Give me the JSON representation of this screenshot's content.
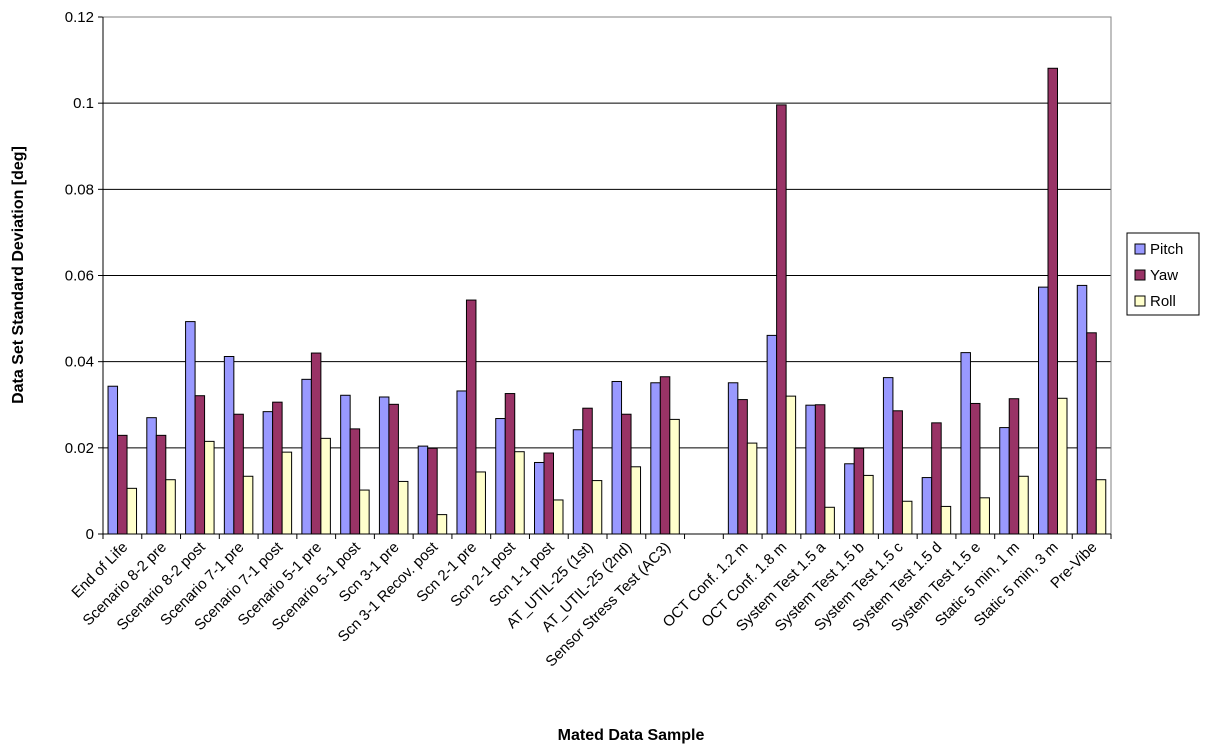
{
  "chart_data": {
    "type": "bar",
    "title": "",
    "xlabel": "Mated Data Sample",
    "ylabel": "Data Set Standard Deviation [deg]",
    "ylim": [
      0,
      0.12
    ],
    "yticks": [
      "0",
      "0.02",
      "0.04",
      "0.06",
      "0.08",
      "0.1",
      "0.12"
    ],
    "grid": true,
    "legend_position": "right",
    "categories": [
      "End of Life",
      "Scenario 8-2 pre",
      "Scenario 8-2 post",
      "Scenario 7-1 pre",
      "Scenario 7-1 post",
      "Scenario 5-1 pre",
      "Scenario 5-1 post",
      "Scn 3-1 pre",
      "Scn 3-1 Recov. post",
      "Scn 2-1 pre",
      "Scn 2-1 post",
      "Scn 1-1 post",
      "AT_UTIL-25 (1st)",
      "AT_UTIL-25 (2nd)",
      "Sensor Stress Test (AC3)",
      "",
      "OCT Conf. 1.2 m",
      "OCT Conf. 1.8 m",
      "System Test 1.5 a",
      "System Test 1.5 b",
      "System Test 1.5 c",
      "System Test 1.5 d",
      "System Test 1.5 e",
      "Static 5 min, 1 m",
      "Static 5 min, 3 m",
      "Pre-Vibe"
    ],
    "series": [
      {
        "name": "Pitch",
        "color": "#9999ff",
        "values": [
          0.0343,
          0.027,
          0.0493,
          0.0412,
          0.0284,
          0.0359,
          0.0322,
          0.0318,
          0.0204,
          0.0332,
          0.0268,
          0.0166,
          0.0242,
          0.0354,
          0.0351,
          null,
          0.0351,
          0.0461,
          0.0299,
          0.0163,
          0.0363,
          0.0131,
          0.0421,
          0.0247,
          0.0573,
          0.0577
        ]
      },
      {
        "name": "Yaw",
        "color": "#993366",
        "values": [
          0.0229,
          0.0229,
          0.0321,
          0.0278,
          0.0306,
          0.042,
          0.0244,
          0.0301,
          0.0199,
          0.0543,
          0.0326,
          0.0188,
          0.0292,
          0.0278,
          0.0365,
          null,
          0.0312,
          0.0996,
          0.03,
          0.0199,
          0.0286,
          0.0258,
          0.0303,
          0.0314,
          0.1081,
          0.0467
        ]
      },
      {
        "name": "Roll",
        "color": "#ffffcc",
        "values": [
          0.0106,
          0.0126,
          0.0215,
          0.0134,
          0.019,
          0.0222,
          0.0102,
          0.0122,
          0.0045,
          0.0144,
          0.0191,
          0.0079,
          0.0124,
          0.0156,
          0.0266,
          null,
          0.0211,
          0.032,
          0.0062,
          0.0136,
          0.0076,
          0.0064,
          0.0084,
          0.0134,
          0.0315,
          0.0126
        ]
      }
    ]
  }
}
